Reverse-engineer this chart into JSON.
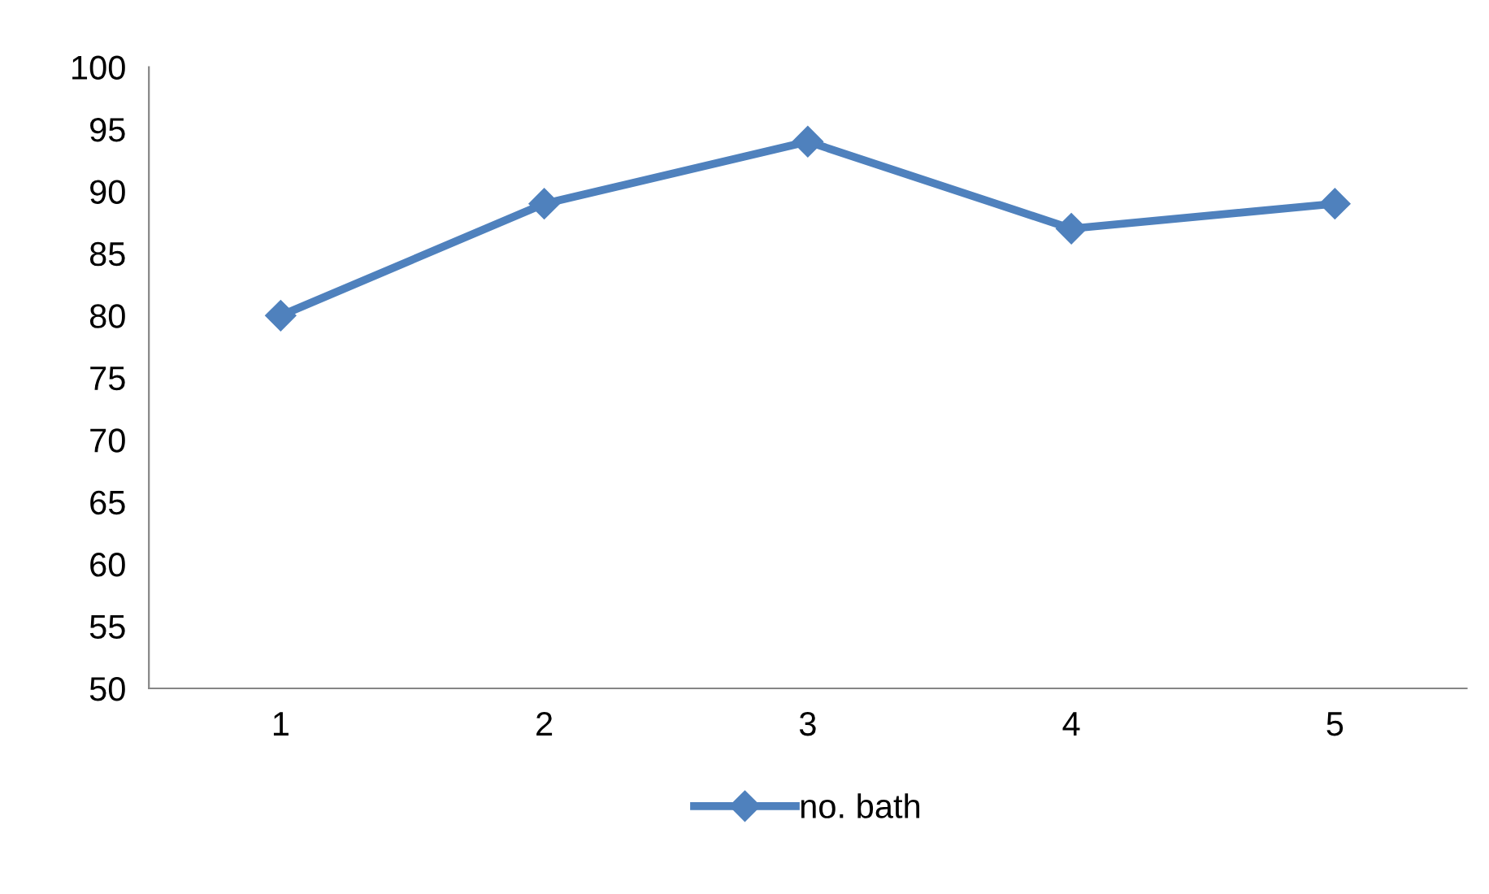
{
  "chart_data": {
    "type": "line",
    "categories": [
      "1",
      "2",
      "3",
      "4",
      "5"
    ],
    "series": [
      {
        "name": "no. bath",
        "color": "#4f81bd",
        "values": [
          80,
          89,
          94,
          87,
          89
        ]
      }
    ],
    "ylim": [
      50,
      100
    ],
    "yticks": [
      50,
      55,
      60,
      65,
      70,
      75,
      80,
      85,
      90,
      95,
      100
    ],
    "grid": false,
    "legend": "bottom",
    "marker": "diamond",
    "line_style": "solid"
  }
}
